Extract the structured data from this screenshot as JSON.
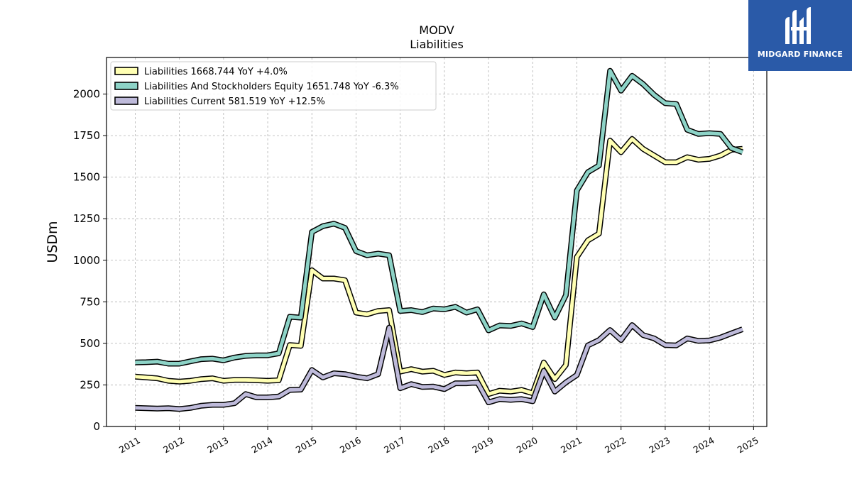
{
  "brand": {
    "name": "MIDGARD FINANCE",
    "logo": "mh-monogram-icon",
    "color": "#2a5aa8"
  },
  "chart_data": {
    "type": "line",
    "title": "MODV",
    "subtitle": "Liabilities",
    "ylabel": "USDm",
    "xlabel": "",
    "xlim": [
      2010.35,
      2025.3
    ],
    "ylim": [
      0,
      2220
    ],
    "yticks": [
      0,
      250,
      500,
      750,
      1000,
      1250,
      1500,
      1750,
      2000
    ],
    "xticks": [
      "2011",
      "2012",
      "2013",
      "2014",
      "2015",
      "2016",
      "2017",
      "2018",
      "2019",
      "2020",
      "2021",
      "2022",
      "2023",
      "2024",
      "2025"
    ],
    "grid": true,
    "legend_position": "top-left",
    "x": [
      2011.0,
      2011.25,
      2011.5,
      2011.75,
      2012.0,
      2012.25,
      2012.5,
      2012.75,
      2013.0,
      2013.25,
      2013.5,
      2013.75,
      2014.0,
      2014.25,
      2014.5,
      2014.75,
      2015.0,
      2015.25,
      2015.5,
      2015.75,
      2016.0,
      2016.25,
      2016.5,
      2016.75,
      2017.0,
      2017.25,
      2017.5,
      2017.75,
      2018.0,
      2018.25,
      2018.5,
      2018.75,
      2019.0,
      2019.25,
      2019.5,
      2019.75,
      2020.0,
      2020.25,
      2020.5,
      2020.75,
      2021.0,
      2021.25,
      2021.5,
      2021.75,
      2022.0,
      2022.25,
      2022.5,
      2022.75,
      2023.0,
      2023.25,
      2023.5,
      2023.75,
      2024.0,
      2024.25,
      2024.5,
      2024.75
    ],
    "series": [
      {
        "name": "Liabilities",
        "legend": "Liabilities  1668.744 YoY +4.0%",
        "color": "#ffffb3",
        "values": [
          300,
          295,
          290,
          275,
          270,
          275,
          285,
          290,
          275,
          280,
          280,
          278,
          275,
          278,
          490,
          485,
          940,
          890,
          890,
          880,
          685,
          675,
          695,
          700,
          330,
          345,
          330,
          335,
          310,
          325,
          320,
          325,
          195,
          215,
          210,
          220,
          200,
          385,
          285,
          370,
          1020,
          1120,
          1160,
          1720,
          1650,
          1730,
          1670,
          1630,
          1590,
          1590,
          1620,
          1605,
          1610,
          1630,
          1665,
          1670
        ]
      },
      {
        "name": "Liabilities And Stockholders Equity",
        "legend": "Liabilities And Stockholders Equity  1651.748 YoY -6.3%",
        "color": "#8dd3c7",
        "values": [
          385,
          387,
          390,
          378,
          378,
          392,
          405,
          408,
          398,
          415,
          425,
          428,
          428,
          440,
          660,
          655,
          1170,
          1205,
          1220,
          1195,
          1055,
          1030,
          1040,
          1030,
          695,
          700,
          688,
          710,
          705,
          720,
          685,
          705,
          578,
          608,
          605,
          620,
          598,
          795,
          655,
          790,
          1420,
          1530,
          1570,
          2140,
          2020,
          2110,
          2060,
          1995,
          1945,
          1940,
          1785,
          1760,
          1765,
          1760,
          1675,
          1650
        ]
      },
      {
        "name": "Liabilities Current",
        "legend": "Liabilities Current  581.519 YoY +12.5%",
        "color": "#bebada",
        "values": [
          112,
          110,
          108,
          110,
          105,
          112,
          125,
          130,
          130,
          140,
          195,
          175,
          175,
          180,
          220,
          222,
          340,
          295,
          320,
          315,
          300,
          290,
          315,
          595,
          230,
          255,
          238,
          240,
          225,
          260,
          260,
          265,
          145,
          165,
          160,
          165,
          152,
          335,
          210,
          265,
          310,
          488,
          520,
          580,
          520,
          610,
          550,
          530,
          490,
          488,
          530,
          515,
          518,
          535,
          560,
          585
        ]
      }
    ]
  }
}
